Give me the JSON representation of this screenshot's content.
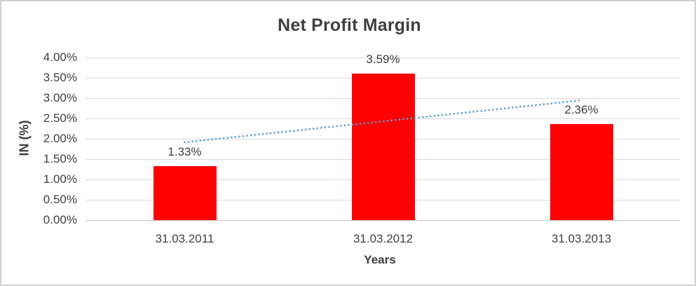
{
  "chart_data": {
    "type": "bar",
    "title": "Net Profit Margin",
    "xlabel": "Years",
    "ylabel": "IN (%)",
    "categories": [
      "31.03.2011",
      "31.03.2012",
      "31.03.2013"
    ],
    "series": [
      {
        "name": "Net Profit Margin",
        "values": [
          1.33,
          3.59,
          2.36
        ]
      }
    ],
    "values": [
      1.33,
      3.59,
      2.36
    ],
    "data_labels": [
      "1.33%",
      "3.59%",
      "2.36%"
    ],
    "ylim": [
      0,
      4
    ],
    "ytick_step": 0.5,
    "ytick_labels": [
      "0.00%",
      "0.50%",
      "1.00%",
      "1.50%",
      "2.00%",
      "2.50%",
      "3.00%",
      "3.50%",
      "4.00%"
    ],
    "grid": true,
    "legend": "none",
    "trendline": {
      "type": "linear",
      "style": "dotted",
      "start_value": 1.91,
      "end_value": 2.94
    }
  },
  "colors": {
    "bar": "#ff0000",
    "trendline": "#5b9bd5",
    "gridline": "#d9d9d9",
    "axis_line": "#c8c8c8",
    "text": "#404040",
    "border": "#d1d1d1",
    "background": "#ffffff"
  }
}
